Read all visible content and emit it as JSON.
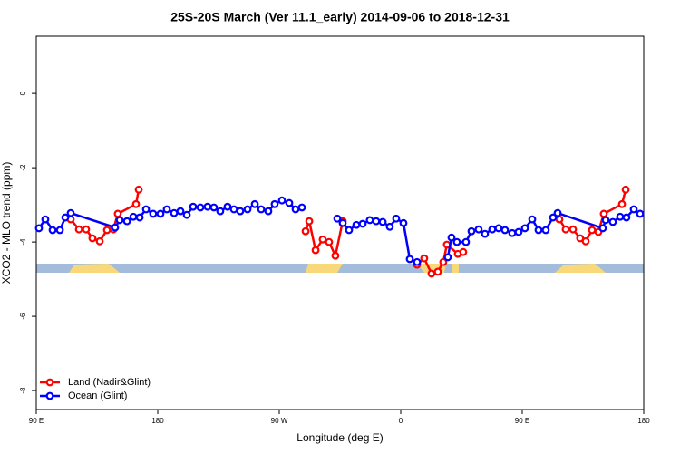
{
  "chart_data": {
    "type": "line",
    "title": "25S-20S March (Ver 11.1_early)   2014-09-06 to 2018-12-31",
    "x_label": "Longitude (deg E)",
    "y_label": "XCO2 - MLO trend (ppm)",
    "xlim": [
      90,
      540
    ],
    "ylim": [
      -8.51,
      1.54
    ],
    "xticks": [
      {
        "value": 90,
        "label": "90 E"
      },
      {
        "value": 180,
        "label": "180"
      },
      {
        "value": 270,
        "label": "90 W"
      },
      {
        "value": 360,
        "label": "0"
      },
      {
        "value": 450,
        "label": "90 E"
      },
      {
        "value": 540,
        "label": "180"
      }
    ],
    "yticks": [
      -8,
      -6,
      -4,
      -2,
      0
    ],
    "legend": "bottom-left",
    "series": [
      {
        "name": "Land (Nadir&Glint)",
        "color": "#ff0000",
        "x": [
          115.5,
          121.6,
          126.9,
          131.6,
          137.0,
          142.4,
          147.1,
          150.4,
          163.9,
          165.9,
          null,
          289.5,
          292.2,
          296.9,
          302.2,
          306.9,
          311.6,
          317.0,
          null,
          372.1,
          377.4,
          382.8,
          387.5,
          391.5,
          394.2,
          402.3,
          406.3,
          null,
          477.5,
          482.2,
          487.6,
          492.9,
          497.0,
          501.7,
          506.4,
          510.4,
          523.9,
          526.6
        ],
        "values": [
          -3.39,
          -3.66,
          -3.66,
          -3.9,
          -3.98,
          -3.68,
          -3.66,
          -3.24,
          -2.98,
          -2.59,
          null,
          -3.71,
          -3.44,
          -4.22,
          -3.93,
          -4.0,
          -4.37,
          -3.44,
          null,
          -4.61,
          -4.44,
          -4.85,
          -4.8,
          -4.54,
          -4.07,
          -4.32,
          -4.27,
          null,
          -3.39,
          -3.66,
          -3.66,
          -3.9,
          -3.98,
          -3.68,
          -3.73,
          -3.24,
          -2.98,
          -2.59
        ]
      },
      {
        "name": "Ocean (Glint)",
        "color": "#0000ff",
        "x": [
          92.0,
          96.7,
          102.1,
          107.5,
          111.5,
          115.5,
          148.4,
          151.8,
          157.2,
          161.9,
          166.6,
          171.3,
          176.6,
          182.0,
          186.7,
          192.1,
          196.8,
          201.5,
          206.2,
          211.6,
          216.9,
          221.6,
          226.3,
          231.7,
          236.4,
          241.1,
          246.5,
          251.9,
          256.6,
          261.9,
          266.6,
          272.0,
          277.4,
          282.1,
          286.8,
          null,
          313.0,
          317.0,
          321.7,
          327.1,
          331.8,
          337.1,
          341.8,
          346.6,
          351.9,
          356.6,
          362.0,
          366.7,
          372.1,
          null,
          394.9,
          397.6,
          401.6,
          408.3,
          412.4,
          417.7,
          422.4,
          427.8,
          432.5,
          437.2,
          442.6,
          447.3,
          452.0,
          457.4,
          462.1,
          467.4,
          472.8,
          476.2,
          509.7,
          511.8,
          517.1,
          522.5,
          527.2,
          532.6,
          537.3
        ],
        "values": [
          -3.63,
          -3.39,
          -3.68,
          -3.68,
          -3.34,
          -3.22,
          -3.61,
          -3.41,
          -3.44,
          -3.32,
          -3.34,
          -3.12,
          -3.24,
          -3.24,
          -3.12,
          -3.22,
          -3.17,
          -3.27,
          -3.05,
          -3.07,
          -3.05,
          -3.07,
          -3.17,
          -3.05,
          -3.12,
          -3.17,
          -3.12,
          -2.98,
          -3.12,
          -3.17,
          -2.98,
          -2.88,
          -2.95,
          -3.12,
          -3.07,
          null,
          -3.37,
          -3.49,
          -3.68,
          -3.54,
          -3.51,
          -3.41,
          -3.44,
          -3.46,
          -3.59,
          -3.37,
          -3.49,
          -4.46,
          -4.54,
          null,
          -4.41,
          -3.88,
          -4.0,
          -4.0,
          -3.71,
          -3.66,
          -3.78,
          -3.66,
          -3.63,
          -3.68,
          -3.76,
          -3.73,
          -3.63,
          -3.39,
          -3.68,
          -3.68,
          -3.34,
          -3.22,
          -3.63,
          -3.41,
          -3.46,
          -3.32,
          -3.34,
          -3.12,
          -3.24
        ]
      }
    ]
  }
}
